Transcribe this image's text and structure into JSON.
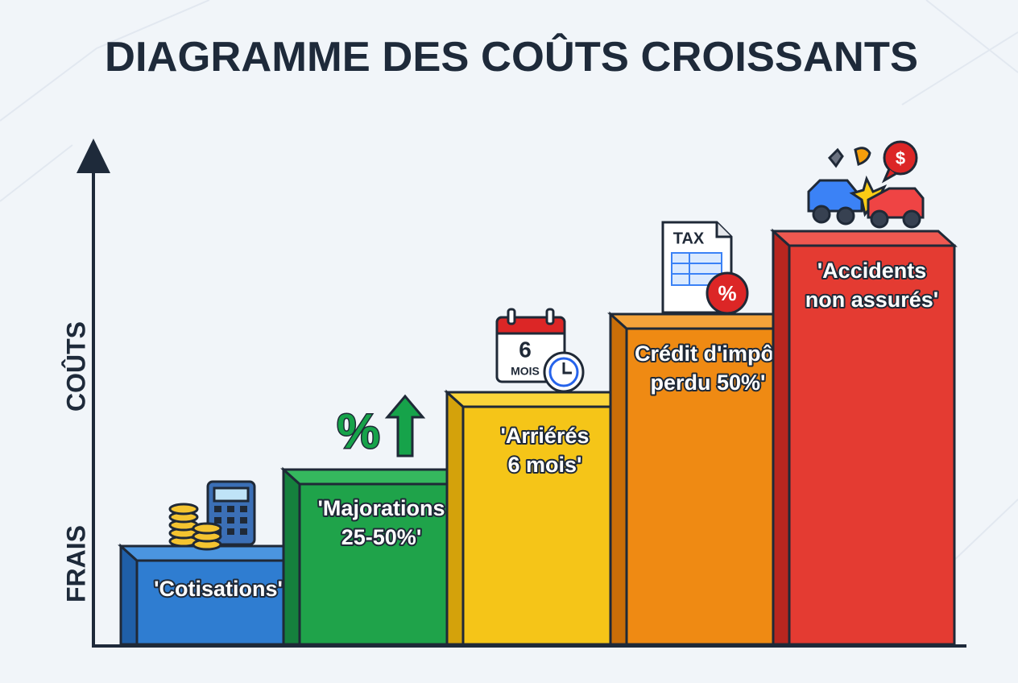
{
  "title": "DIAGRAMME DES COÛTS CROISSANTS",
  "axis": {
    "y_label_top": "COÛTS",
    "y_label_bottom": "FRAIS"
  },
  "steps": [
    {
      "lines": [
        "'Cotisations'"
      ]
    },
    {
      "lines": [
        "'Majorations",
        "25-50%'"
      ]
    },
    {
      "lines": [
        "'Arriérés",
        "6 mois'"
      ]
    },
    {
      "lines": [
        "Crédit d'impôt",
        "perdu 50%'"
      ]
    },
    {
      "lines": [
        "'Accidents",
        "non assurés'"
      ]
    }
  ],
  "icons": {
    "percent_up": "%",
    "calendar_number": "6",
    "calendar_unit": "MOIS",
    "tax_doc": "TAX",
    "tax_badge": "%",
    "money_bubble": "$"
  }
}
